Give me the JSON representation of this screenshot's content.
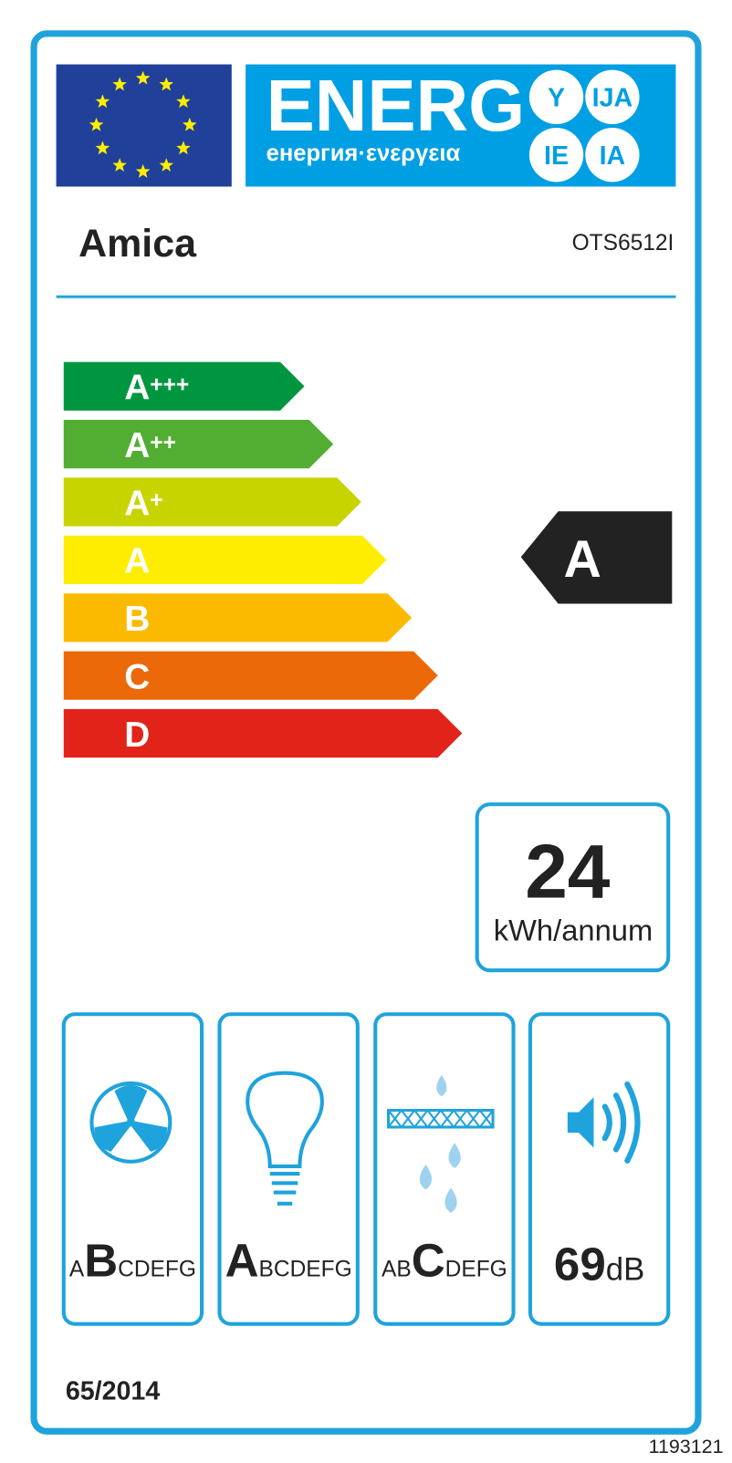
{
  "header": {
    "title": "ENERG",
    "subtitle": "енергия·ενεργεια",
    "badges": [
      "Y",
      "IJA",
      "IE",
      "IA"
    ]
  },
  "supplier": "Amica",
  "model": "OTS6512I",
  "scale": [
    {
      "letter": "A",
      "sup": "+++",
      "color": "#00963f"
    },
    {
      "letter": "A",
      "sup": "++",
      "color": "#52ae32"
    },
    {
      "letter": "A",
      "sup": "+",
      "color": "#c8d400"
    },
    {
      "letter": "A",
      "color": "#ffed00"
    },
    {
      "letter": "B",
      "color": "#fbba00"
    },
    {
      "letter": "C",
      "color": "#eb6909"
    },
    {
      "letter": "D",
      "color": "#e2231a"
    }
  ],
  "rating": "A",
  "consumption": {
    "value": 24,
    "unit": "kWh/annum"
  },
  "icons": [
    {
      "before": "A",
      "class": "B",
      "after": "CDEFG"
    },
    {
      "class": "A",
      "after": "BCDEFG"
    },
    {
      "before": "AB",
      "class": "C",
      "after": "DEFG"
    }
  ],
  "noise": {
    "value": 69,
    "unit": "dB"
  },
  "regulation": "65/2014",
  "label_id": "1193121"
}
